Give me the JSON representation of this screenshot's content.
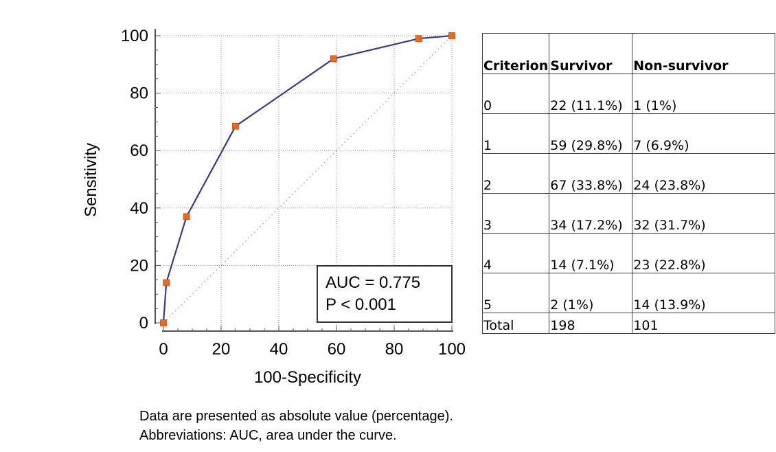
{
  "chart_data": {
    "type": "line",
    "xlabel": "100-Specificity",
    "ylabel": "Sensitivity",
    "xlim": [
      0,
      100
    ],
    "ylim": [
      0,
      100
    ],
    "xticks": [
      0,
      20,
      40,
      60,
      80,
      100
    ],
    "yticks": [
      0,
      20,
      40,
      60,
      80,
      100
    ],
    "grid": true,
    "series": [
      {
        "x": [
          0,
          1,
          8,
          25,
          59,
          88.5,
          100
        ],
        "y": [
          0,
          14,
          37,
          68.5,
          92,
          99,
          100
        ]
      }
    ],
    "reference_line": {
      "x": [
        0,
        100
      ],
      "y": [
        0,
        100
      ]
    },
    "annotation": {
      "auc": "AUC = 0.775",
      "p": "P < 0.001"
    },
    "colors": {
      "line": "#3a3a8c",
      "marker": "#f06a1a",
      "grid": "#9a9a9a"
    }
  },
  "table": {
    "headers": [
      "Criterion",
      "Survivor",
      "Non-survivor"
    ],
    "rows": [
      [
        "0",
        "22 (11.1%)",
        "1 (1%)"
      ],
      [
        "1",
        "59 (29.8%)",
        "7 (6.9%)"
      ],
      [
        "2",
        "67 (33.8%)",
        "24 (23.8%)"
      ],
      [
        "3",
        "34 (17.2%)",
        "32 (31.7%)"
      ],
      [
        "4",
        "14 (7.1%)",
        "23 (22.8%)"
      ],
      [
        "5",
        "2 (1%)",
        "14 (13.9%)"
      ]
    ],
    "total": [
      "Total",
      "198",
      "101"
    ]
  },
  "notes": [
    "Data are presented as absolute value (percentage).",
    "Abbreviations: AUC, area under the curve."
  ]
}
